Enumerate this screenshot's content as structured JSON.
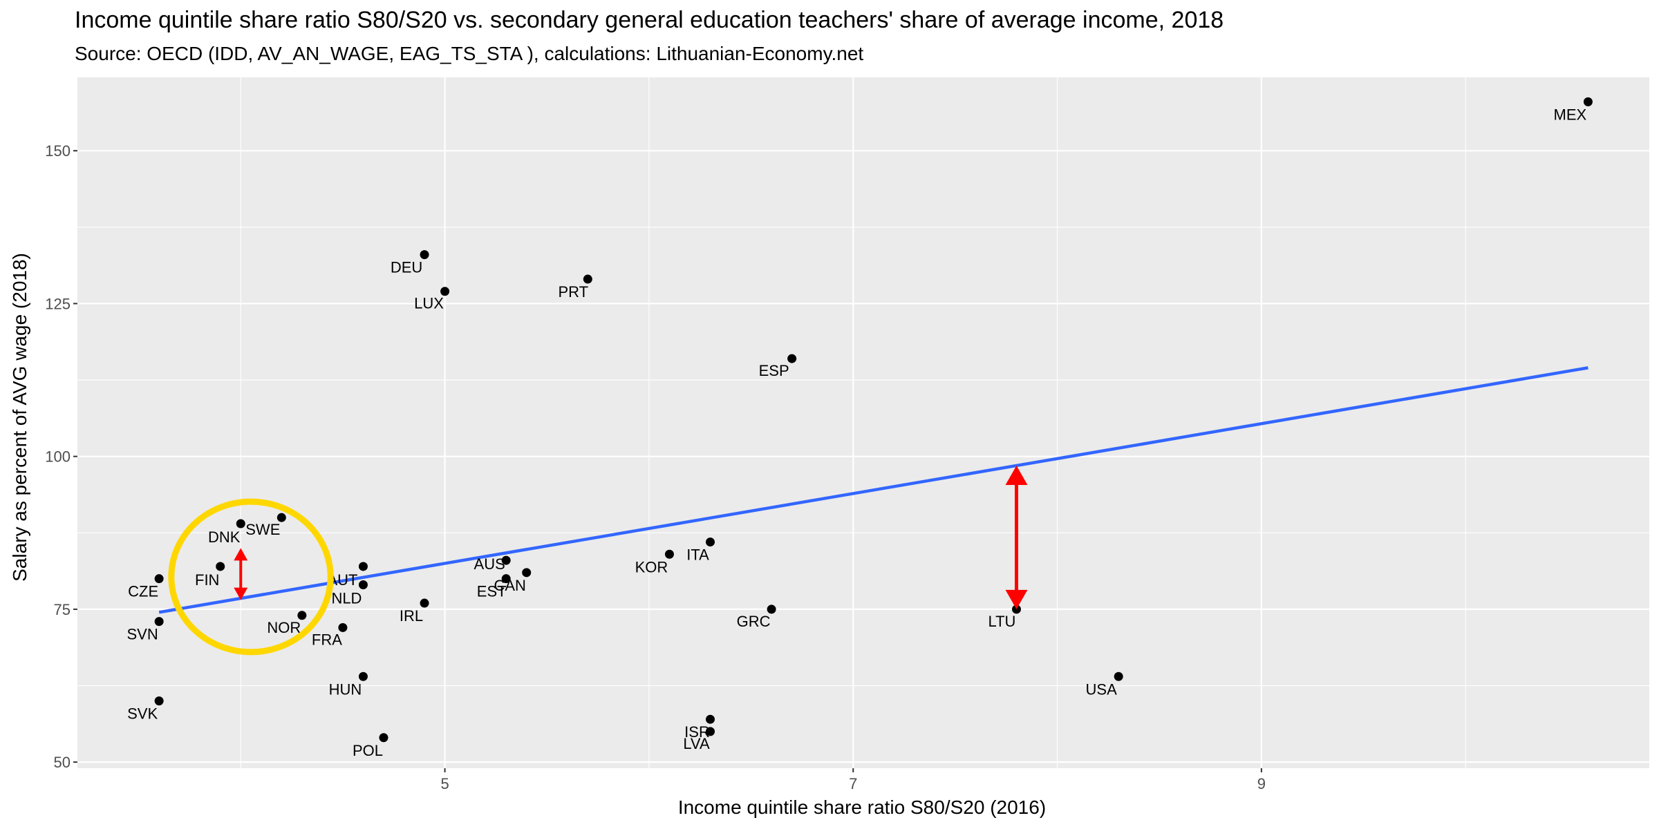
{
  "chart_data": {
    "type": "scatter",
    "title": "Income quintile share ratio S80/S20 vs. secondary general education teachers' share of average income, 2018",
    "subtitle": "Source: OECD (IDD, AV_AN_WAGE, EAG_TS_STA ), calculations: Lithuanian-Economy.net",
    "xlabel": "Income quintile share ratio S80/S20 (2016)",
    "ylabel": "Salary as percent of AVG wage (2018)",
    "xlim": [
      3.2,
      10.9
    ],
    "ylim": [
      49,
      162
    ],
    "x_ticks": [
      5,
      7,
      9
    ],
    "x_minor": [
      4,
      6,
      8,
      10
    ],
    "y_ticks": [
      50,
      75,
      100,
      125,
      150
    ],
    "grid": true,
    "colors": {
      "panel": "#ebebeb",
      "grid": "#ffffff",
      "point": "#000000",
      "trend": "#3366ff",
      "arrow": "#ff0000",
      "circle": "#ffd700"
    },
    "points": [
      {
        "label": "MEX",
        "x": 10.6,
        "y": 158
      },
      {
        "label": "DEU",
        "x": 4.9,
        "y": 133
      },
      {
        "label": "PRT",
        "x": 5.7,
        "y": 129
      },
      {
        "label": "LUX",
        "x": 5.0,
        "y": 127
      },
      {
        "label": "ESP",
        "x": 6.7,
        "y": 116
      },
      {
        "label": "SWE",
        "x": 4.2,
        "y": 90
      },
      {
        "label": "DNK",
        "x": 4.0,
        "y": 89
      },
      {
        "label": "ITA",
        "x": 6.3,
        "y": 86
      },
      {
        "label": "KOR",
        "x": 6.1,
        "y": 84
      },
      {
        "label": "AUS",
        "x": 5.3,
        "y": 83
      },
      {
        "label": "FIN",
        "x": 3.9,
        "y": 82
      },
      {
        "label": "AUT",
        "x": 4.6,
        "y": 82
      },
      {
        "label": "CAN",
        "x": 5.4,
        "y": 81
      },
      {
        "label": "CZE",
        "x": 3.6,
        "y": 80
      },
      {
        "label": "EST",
        "x": 5.3,
        "y": 80
      },
      {
        "label": "NLD",
        "x": 4.6,
        "y": 79
      },
      {
        "label": "IRL",
        "x": 4.9,
        "y": 76
      },
      {
        "label": "GRC",
        "x": 6.6,
        "y": 75
      },
      {
        "label": "LTU",
        "x": 7.8,
        "y": 75
      },
      {
        "label": "NOR",
        "x": 4.3,
        "y": 74
      },
      {
        "label": "SVN",
        "x": 3.6,
        "y": 73
      },
      {
        "label": "FRA",
        "x": 4.5,
        "y": 72
      },
      {
        "label": "HUN",
        "x": 4.6,
        "y": 64
      },
      {
        "label": "USA",
        "x": 8.3,
        "y": 64
      },
      {
        "label": "SVK",
        "x": 3.6,
        "y": 60
      },
      {
        "label": "ISR",
        "x": 6.3,
        "y": 57
      },
      {
        "label": "LVA",
        "x": 6.3,
        "y": 55
      },
      {
        "label": "POL",
        "x": 4.7,
        "y": 54
      }
    ],
    "trend_line": {
      "x": [
        3.6,
        10.6
      ],
      "y": [
        74.5,
        114.5
      ]
    },
    "annotations": {
      "arrows": [
        {
          "x": 7.8,
          "y_from": 75,
          "y_to": 98.5
        },
        {
          "x": 4.0,
          "y_from": 76.5,
          "y_to": 85
        }
      ],
      "circle": {
        "cx": 4.05,
        "cy": 80.3,
        "rx": 0.39,
        "ry": 12.3
      }
    }
  }
}
